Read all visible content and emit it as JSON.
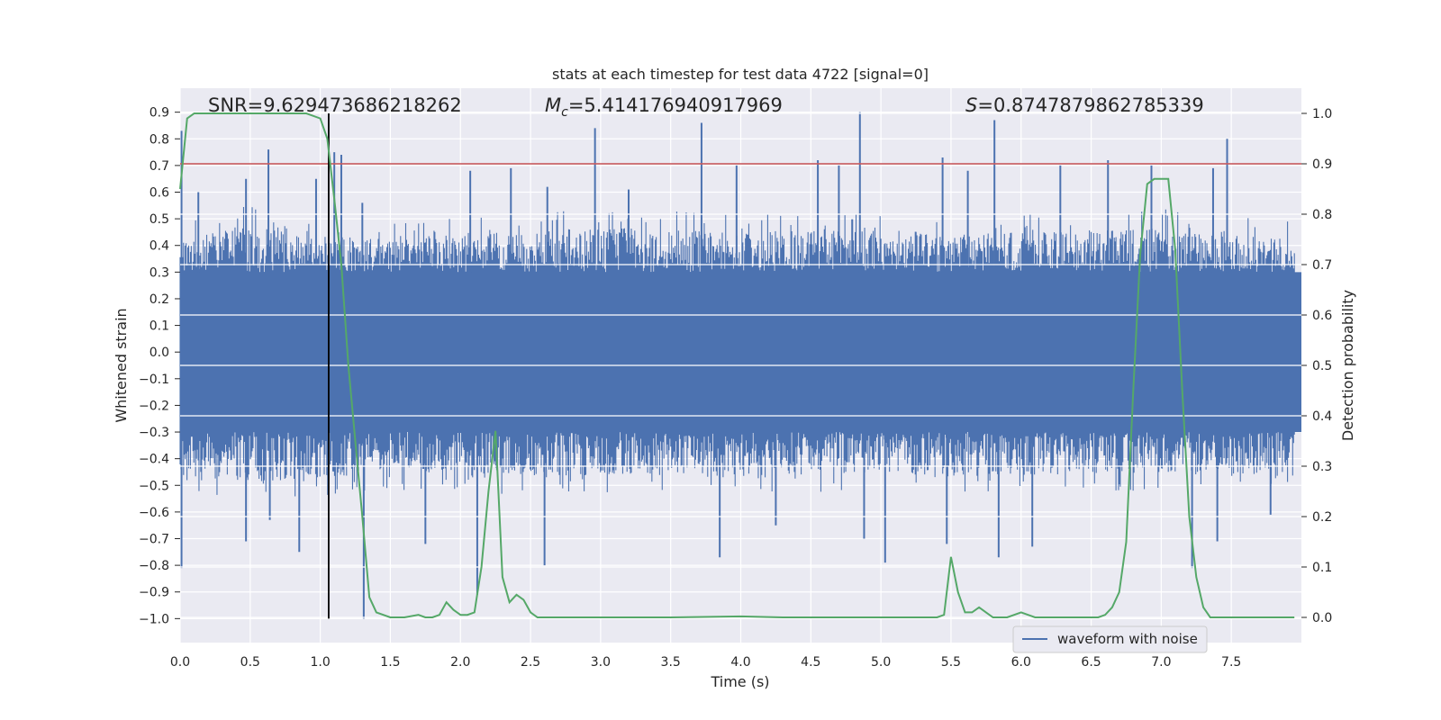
{
  "chart_data": {
    "type": "line",
    "title": "stats at each timestep for test data 4722 [signal=0]",
    "xlabel": "Time (s)",
    "ylabel_left": "Whitened strain",
    "ylabel_right": "Detection probability",
    "xlim": [
      0.0,
      8.0
    ],
    "ylim_left": [
      -1.09,
      0.99
    ],
    "ylim_right": [
      -0.05,
      1.05
    ],
    "x_ticks": [
      "0.0",
      "0.5",
      "1.0",
      "1.5",
      "2.0",
      "2.5",
      "3.0",
      "3.5",
      "4.0",
      "4.5",
      "5.0",
      "5.5",
      "6.0",
      "6.5",
      "7.0",
      "7.5"
    ],
    "y_left_ticks": [
      "0.9",
      "0.8",
      "0.7",
      "0.6",
      "0.5",
      "0.4",
      "0.3",
      "0.2",
      "0.1",
      "0.0",
      "−0.1",
      "−0.2",
      "−0.3",
      "−0.4",
      "−0.5",
      "−0.6",
      "−0.7",
      "−0.8",
      "−0.9",
      "−1.0"
    ],
    "y_right_ticks": [
      "0.0",
      "0.1",
      "0.2",
      "0.3",
      "0.4",
      "0.5",
      "0.6",
      "0.7",
      "0.8",
      "0.9",
      "1.0"
    ],
    "grid": true,
    "legend": {
      "placement": "lower-right",
      "entries": [
        "waveform with noise"
      ]
    },
    "annotations": {
      "snr": "SNR=9.629473686218262",
      "mc_symbol": "M",
      "mc_sub": "c",
      "mc_value": "=5.414176940917969",
      "s_symbol": "S",
      "s_value": "=0.8747879862785339"
    },
    "threshold_probability": 0.9,
    "vline_time": 1.06,
    "series": [
      {
        "name": "waveform with noise",
        "color": "#4c72b0",
        "axis": "left",
        "envelope": {
          "x": [
            0.0,
            0.2,
            0.5,
            1.0,
            1.5,
            2.0,
            2.5,
            3.0,
            3.5,
            4.0,
            4.5,
            5.0,
            5.5,
            6.0,
            6.5,
            7.0,
            7.5,
            7.95
          ],
          "upper": [
            0.42,
            0.45,
            0.48,
            0.45,
            0.43,
            0.44,
            0.45,
            0.47,
            0.46,
            0.45,
            0.46,
            0.47,
            0.44,
            0.45,
            0.46,
            0.47,
            0.45,
            0.42
          ],
          "lower": [
            -0.44,
            -0.46,
            -0.49,
            -0.47,
            -0.45,
            -0.45,
            -0.47,
            -0.46,
            -0.45,
            -0.47,
            -0.46,
            -0.45,
            -0.47,
            -0.46,
            -0.46,
            -0.45,
            -0.47,
            -0.43
          ]
        },
        "peaks": [
          {
            "x": 0.01,
            "y": 0.83
          },
          {
            "x": 0.13,
            "y": 0.6
          },
          {
            "x": 0.47,
            "y": 0.65
          },
          {
            "x": 0.63,
            "y": 0.76
          },
          {
            "x": 0.97,
            "y": 0.65
          },
          {
            "x": 1.1,
            "y": 0.75
          },
          {
            "x": 1.15,
            "y": 0.74
          },
          {
            "x": 1.3,
            "y": 0.56
          },
          {
            "x": 2.07,
            "y": 0.68
          },
          {
            "x": 2.36,
            "y": 0.69
          },
          {
            "x": 2.62,
            "y": 0.62
          },
          {
            "x": 2.96,
            "y": 0.84
          },
          {
            "x": 3.2,
            "y": 0.61
          },
          {
            "x": 3.72,
            "y": 0.86
          },
          {
            "x": 3.97,
            "y": 0.7
          },
          {
            "x": 4.55,
            "y": 0.72
          },
          {
            "x": 4.7,
            "y": 0.7
          },
          {
            "x": 4.85,
            "y": 0.9
          },
          {
            "x": 5.44,
            "y": 0.73
          },
          {
            "x": 5.62,
            "y": 0.68
          },
          {
            "x": 5.81,
            "y": 0.87
          },
          {
            "x": 6.28,
            "y": 0.7
          },
          {
            "x": 6.62,
            "y": 0.72
          },
          {
            "x": 6.93,
            "y": 0.7
          },
          {
            "x": 7.37,
            "y": 0.69
          },
          {
            "x": 7.47,
            "y": 0.8
          }
        ],
        "troughs": [
          {
            "x": 0.01,
            "y": -0.81
          },
          {
            "x": 0.47,
            "y": -0.71
          },
          {
            "x": 0.64,
            "y": -0.63
          },
          {
            "x": 0.85,
            "y": -0.75
          },
          {
            "x": 1.31,
            "y": -1.0
          },
          {
            "x": 1.75,
            "y": -0.72
          },
          {
            "x": 2.12,
            "y": -0.91
          },
          {
            "x": 2.6,
            "y": -0.8
          },
          {
            "x": 3.85,
            "y": -0.77
          },
          {
            "x": 4.25,
            "y": -0.65
          },
          {
            "x": 4.88,
            "y": -0.7
          },
          {
            "x": 5.03,
            "y": -0.79
          },
          {
            "x": 5.47,
            "y": -0.72
          },
          {
            "x": 5.84,
            "y": -0.77
          },
          {
            "x": 6.08,
            "y": -0.73
          },
          {
            "x": 7.22,
            "y": -0.81
          },
          {
            "x": 7.4,
            "y": -0.71
          },
          {
            "x": 7.78,
            "y": -0.61
          }
        ]
      },
      {
        "name": "",
        "color": "#55a868",
        "axis": "right",
        "x": [
          0.0,
          0.05,
          0.1,
          0.2,
          0.3,
          0.5,
          0.7,
          0.9,
          1.0,
          1.05,
          1.1,
          1.15,
          1.2,
          1.25,
          1.3,
          1.35,
          1.4,
          1.5,
          1.6,
          1.7,
          1.75,
          1.8,
          1.85,
          1.9,
          1.95,
          2.0,
          2.05,
          2.1,
          2.15,
          2.2,
          2.25,
          2.3,
          2.35,
          2.4,
          2.45,
          2.5,
          2.55,
          2.6,
          2.7,
          2.8,
          3.0,
          3.5,
          4.0,
          4.3,
          4.5,
          5.0,
          5.3,
          5.4,
          5.45,
          5.5,
          5.55,
          5.6,
          5.65,
          5.7,
          5.75,
          5.8,
          5.85,
          5.9,
          6.0,
          6.1,
          6.2,
          6.4,
          6.5,
          6.55,
          6.6,
          6.65,
          6.7,
          6.75,
          6.8,
          6.85,
          6.9,
          6.95,
          7.0,
          7.05,
          7.1,
          7.15,
          7.2,
          7.25,
          7.3,
          7.35,
          7.4,
          7.5,
          7.95
        ],
        "y": [
          0.85,
          0.99,
          1.0,
          1.0,
          1.0,
          1.0,
          1.0,
          1.0,
          0.99,
          0.95,
          0.83,
          0.7,
          0.5,
          0.35,
          0.2,
          0.04,
          0.01,
          0.0,
          0.0,
          0.005,
          0.0,
          0.0,
          0.005,
          0.03,
          0.015,
          0.005,
          0.005,
          0.01,
          0.1,
          0.25,
          0.37,
          0.08,
          0.03,
          0.045,
          0.035,
          0.01,
          0.0,
          0.0,
          0.0,
          0.0,
          0.0,
          0.0,
          0.002,
          0.0,
          0.0,
          0.0,
          0.0,
          0.0,
          0.005,
          0.12,
          0.05,
          0.01,
          0.01,
          0.02,
          0.01,
          0.0,
          0.0,
          0.0,
          0.01,
          0.0,
          0.0,
          0.0,
          0.0,
          0.0,
          0.005,
          0.02,
          0.05,
          0.15,
          0.45,
          0.72,
          0.86,
          0.87,
          0.87,
          0.87,
          0.73,
          0.45,
          0.2,
          0.08,
          0.02,
          0.0,
          0.0,
          0.0,
          0.0
        ]
      }
    ]
  }
}
